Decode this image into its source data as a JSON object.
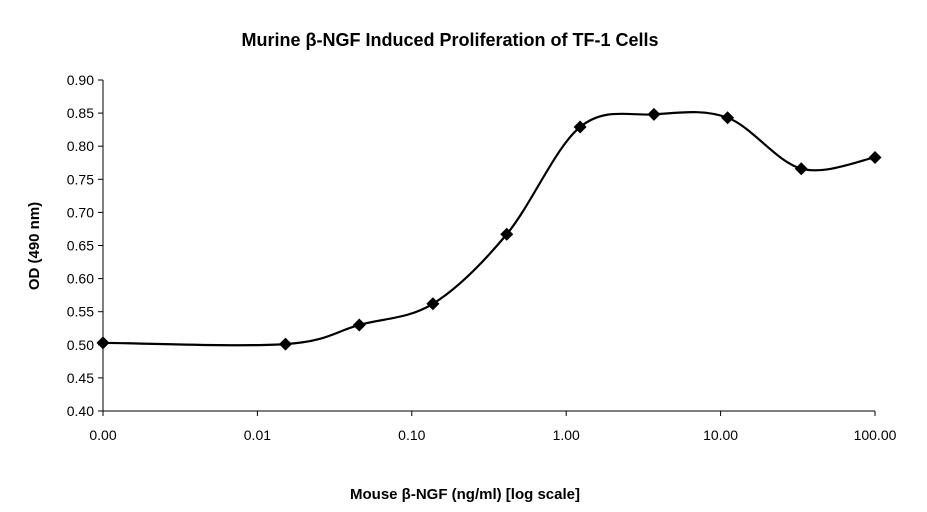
{
  "chart_data": {
    "type": "line",
    "title": "Murine β-NGF Induced Proliferation of TF-1 Cells",
    "xlabel": "Mouse β-NGF (ng/ml) [log scale]",
    "ylabel": "OD (490 nm)",
    "x_scale": "log",
    "x_tick_labels": [
      "0.00",
      "0.01",
      "0.10",
      "1.00",
      "10.00",
      "100.00"
    ],
    "x_tick_values": [
      0.001,
      0.01,
      0.1,
      1,
      10,
      100
    ],
    "xlim": [
      0.001,
      100
    ],
    "y_tick_labels": [
      "0.40",
      "0.45",
      "0.50",
      "0.55",
      "0.60",
      "0.65",
      "0.70",
      "0.75",
      "0.80",
      "0.85",
      "0.90"
    ],
    "ylim": [
      0.4,
      0.9
    ],
    "y_step": 0.05,
    "grid": false,
    "legend": "none",
    "series": [
      {
        "marker": "diamond",
        "smooth": true,
        "color": "#000000",
        "x": [
          0.001,
          0.0152,
          0.0457,
          0.137,
          0.412,
          1.23,
          3.7,
          11.1,
          33.3,
          100
        ],
        "y": [
          0.503,
          0.501,
          0.53,
          0.562,
          0.667,
          0.829,
          0.848,
          0.843,
          0.766,
          0.783
        ]
      }
    ]
  }
}
